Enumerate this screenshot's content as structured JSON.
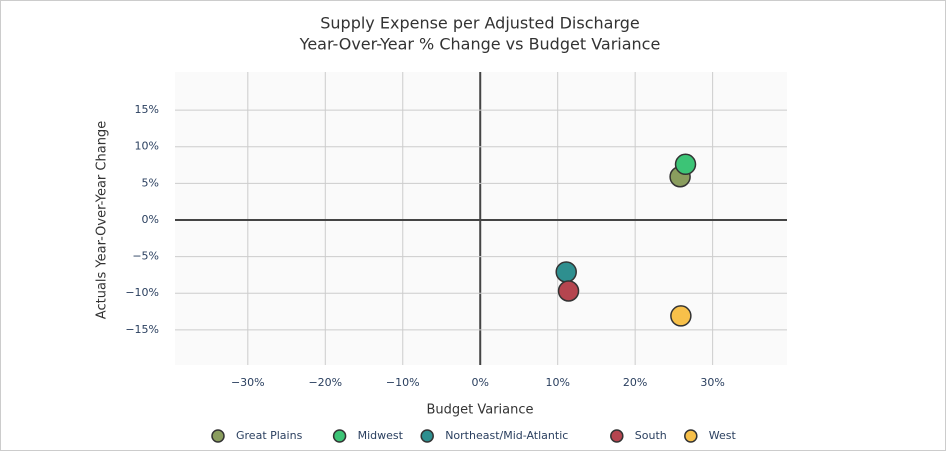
{
  "chart_data": {
    "type": "scatter",
    "title": "Supply Expense per Adjusted Discharge",
    "subtitle": "Year-Over-Year % Change vs Budget Variance",
    "x_label": "Budget Variance",
    "y_label": "Actuals Year-Over-Year Change",
    "xlim": [
      -39.4,
      39.6
    ],
    "ylim": [
      -19.8,
      20.2
    ],
    "xticks": [
      {
        "value": -30,
        "label": "−30%"
      },
      {
        "value": -20,
        "label": "−20%"
      },
      {
        "value": -10,
        "label": "−10%"
      },
      {
        "value": 0,
        "label": "0%"
      },
      {
        "value": 10,
        "label": "10%"
      },
      {
        "value": 20,
        "label": "20%"
      },
      {
        "value": 30,
        "label": "30%"
      }
    ],
    "yticks": [
      {
        "value": -15,
        "label": "−15%"
      },
      {
        "value": -10,
        "label": "−10%"
      },
      {
        "value": -5,
        "label": "−5%"
      },
      {
        "value": 0,
        "label": "0%"
      },
      {
        "value": 5,
        "label": "5%"
      },
      {
        "value": 10,
        "label": "10%"
      },
      {
        "value": 15,
        "label": "15%"
      }
    ],
    "grid": true,
    "legend": "bottom",
    "series": [
      {
        "name": "Great Plains",
        "color": "#8a9d5e",
        "x": [
          25.8
        ],
        "values": [
          5.9
        ]
      },
      {
        "name": "Midwest",
        "color": "#3cc476",
        "x": [
          26.5
        ],
        "values": [
          7.6
        ]
      },
      {
        "name": "Northeast/Mid-Atlantic",
        "color": "#2e8f8f",
        "x": [
          11.1
        ],
        "values": [
          -7.1
        ]
      },
      {
        "name": "South",
        "color": "#b5454f",
        "x": [
          11.4
        ],
        "values": [
          -9.7
        ]
      },
      {
        "name": "West",
        "color": "#f7c04a",
        "x": [
          25.9
        ],
        "values": [
          -13.1
        ]
      }
    ]
  }
}
